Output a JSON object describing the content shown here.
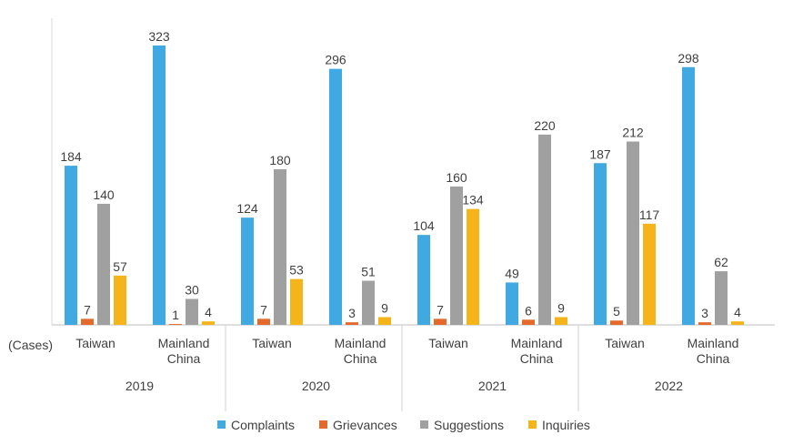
{
  "chart_data": {
    "type": "bar",
    "unit_label": "(Cases)",
    "groups": [
      {
        "year": "2019",
        "categories": [
          "Taiwan",
          "Mainland China"
        ]
      },
      {
        "year": "2020",
        "categories": [
          "Taiwan",
          "Mainland China"
        ]
      },
      {
        "year": "2021",
        "categories": [
          "Taiwan",
          "Mainland China"
        ]
      },
      {
        "year": "2022",
        "categories": [
          "Taiwan",
          "Mainland China"
        ]
      }
    ],
    "series": [
      {
        "name": "Complaints",
        "color": "#41a9e1",
        "values": [
          184,
          323,
          124,
          296,
          104,
          49,
          187,
          298
        ]
      },
      {
        "name": "Grievances",
        "color": "#e4692b",
        "values": [
          7,
          1,
          7,
          3,
          7,
          6,
          5,
          3
        ]
      },
      {
        "name": "Suggestions",
        "color": "#a0a0a0",
        "values": [
          140,
          30,
          180,
          51,
          160,
          220,
          212,
          62
        ]
      },
      {
        "name": "Inquiries",
        "color": "#f4b41a",
        "values": [
          57,
          4,
          53,
          9,
          134,
          9,
          117,
          4
        ]
      }
    ],
    "ylim": [
      0,
      330
    ],
    "legend_position": "bottom",
    "grid": false
  }
}
